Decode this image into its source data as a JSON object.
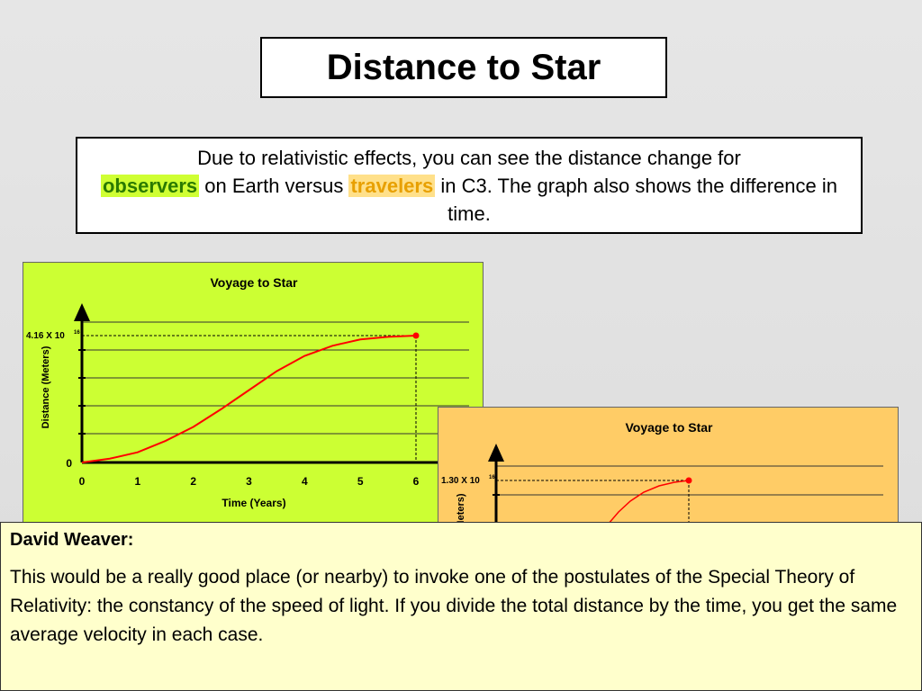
{
  "slide": {
    "title": "Distance to Star",
    "description": {
      "line1": "Due to relativistic effects, you can see the distance change for",
      "obs_word": "observers",
      "mid": " on Earth versus ",
      "trv_word": "travelers",
      "tail": " in C3. The graph also shows the difference in time."
    },
    "colors": {
      "observers_highlight": "#cfff33",
      "travelers_highlight": "#ffe08a"
    }
  },
  "chart_data": [
    {
      "type": "line",
      "title": "Voyage to Star",
      "xlabel": "Time (Years)",
      "ylabel": "Distance (Meters)",
      "x_ticks": [
        "0",
        "1",
        "2",
        "3",
        "4",
        "5",
        "6"
      ],
      "y_zero_label": "0",
      "y_max_label": "4.16 X 10",
      "y_max_exp": "16",
      "xlim": [
        0,
        6.5
      ],
      "ylim_frac": [
        0,
        1.14
      ],
      "x": [
        0,
        0.5,
        1,
        1.5,
        2,
        2.5,
        3,
        3.5,
        4,
        4.5,
        5,
        5.5,
        6
      ],
      "y_frac": [
        0,
        0.03,
        0.08,
        0.17,
        0.28,
        0.42,
        0.57,
        0.72,
        0.84,
        0.92,
        0.97,
        0.99,
        1.0
      ],
      "endpoint_x": 6,
      "background": "#ccff33",
      "line_color": "#ff0000",
      "grid": true
    },
    {
      "type": "line",
      "title": "Voyage to Star",
      "ylabel": "Meters)",
      "y_max_label": "1.30 X 10",
      "y_max_exp": "16",
      "background": "#ffcc66",
      "line_color": "#ff0000",
      "grid": true
    }
  ],
  "note": {
    "author": "David Weaver:",
    "body": "This would be a really good place (or nearby) to invoke one of the postulates of the Special Theory of Relativity: the constancy of the speed of light.  If you divide the total distance by the time, you get the same average velocity in each case."
  }
}
